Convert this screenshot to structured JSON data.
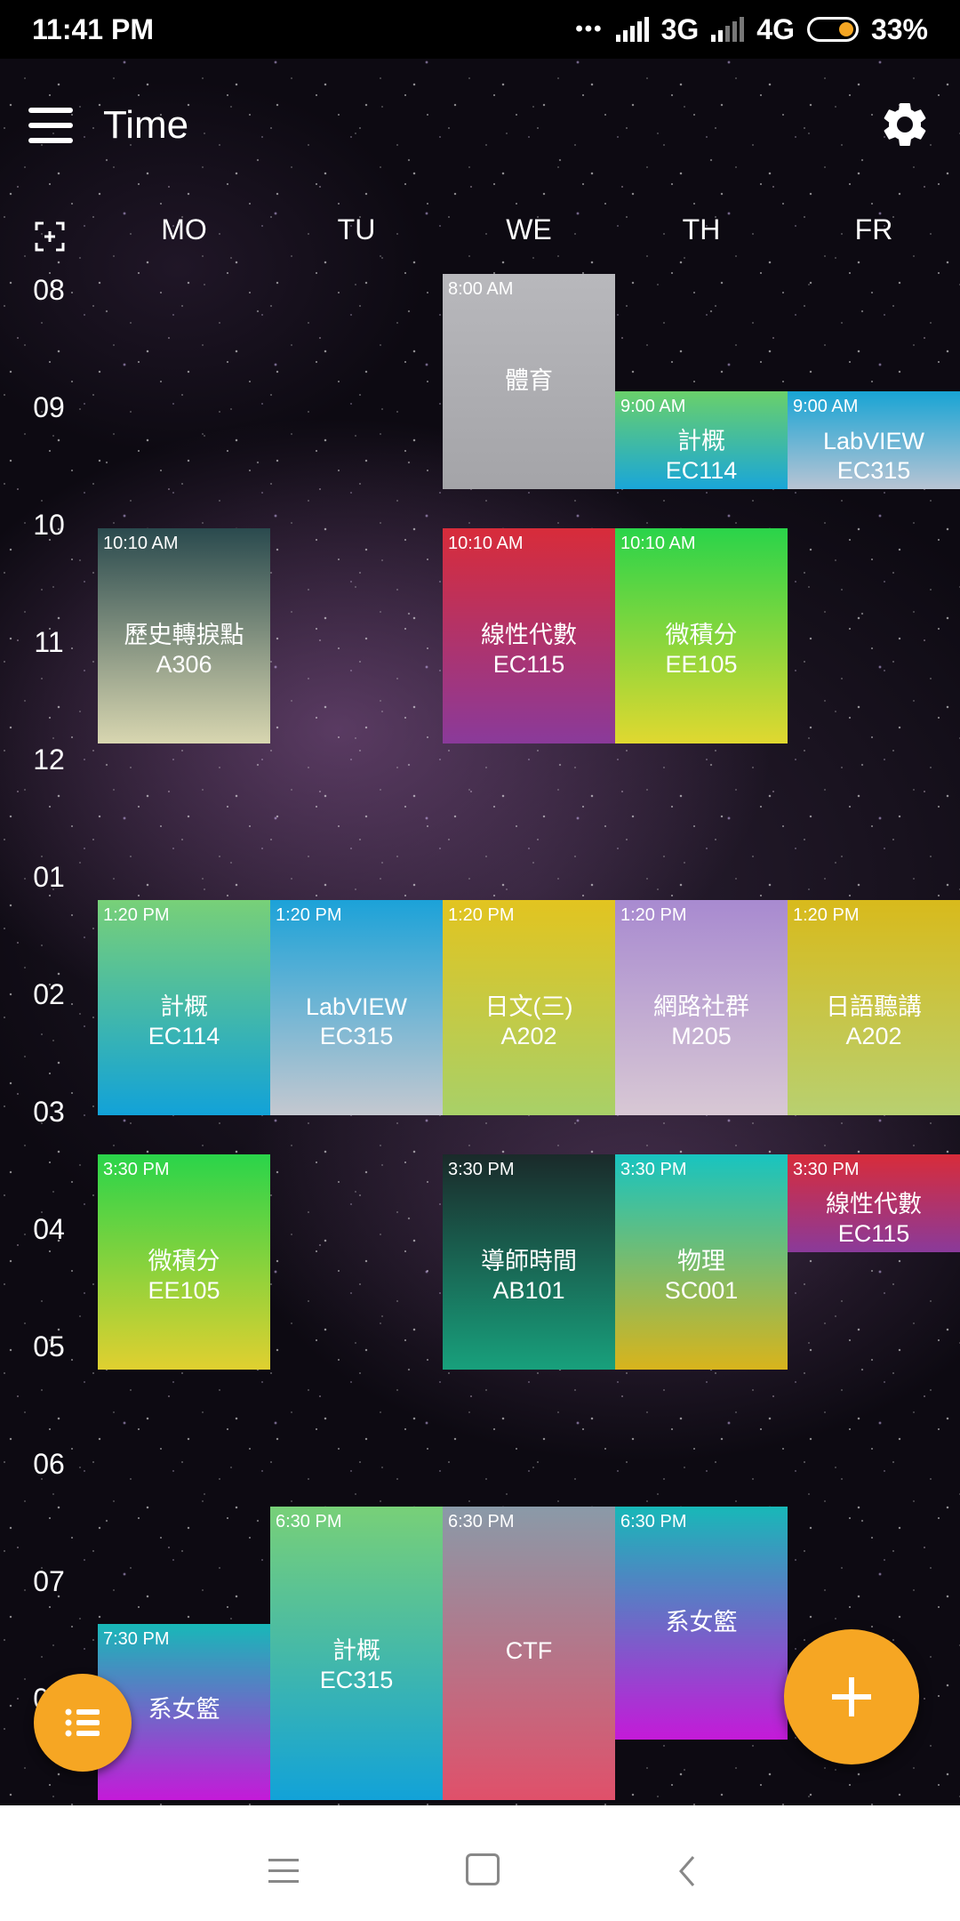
{
  "status_bar": {
    "time": "11:41 PM",
    "net1": "3G",
    "net2": "4G",
    "battery": "33%",
    "dots": "•••"
  },
  "app_bar": {
    "title": "Time"
  },
  "days": [
    "MO",
    "TU",
    "WE",
    "TH",
    "FR"
  ],
  "hours": [
    "08",
    "09",
    "10",
    "11",
    "12",
    "01",
    "02",
    "03",
    "04",
    "05",
    "06",
    "07",
    "08"
  ],
  "courses": {
    "we_0800": {
      "time": "8:00 AM",
      "name": "體育",
      "room": ""
    },
    "th_0900": {
      "time": "9:00 AM",
      "name": "計概",
      "room": "EC114"
    },
    "fr_0900": {
      "time": "9:00 AM",
      "name": "LabVIEW",
      "room": "EC315"
    },
    "mo_1010": {
      "time": "10:10 AM",
      "name": "歷史轉捩點",
      "room": "A306"
    },
    "we_1010": {
      "time": "10:10 AM",
      "name": "線性代數",
      "room": "EC115"
    },
    "th_1010": {
      "time": "10:10 AM",
      "name": "微積分",
      "room": "EE105"
    },
    "mo_1320": {
      "time": "1:20 PM",
      "name": "計概",
      "room": "EC114"
    },
    "tu_1320": {
      "time": "1:20 PM",
      "name": "LabVIEW",
      "room": "EC315"
    },
    "we_1320": {
      "time": "1:20 PM",
      "name": "日文(三)",
      "room": "A202"
    },
    "th_1320": {
      "time": "1:20 PM",
      "name": "網路社群",
      "room": "M205"
    },
    "fr_1320": {
      "time": "1:20 PM",
      "name": "日語聽講",
      "room": "A202"
    },
    "mo_1530": {
      "time": "3:30 PM",
      "name": "微積分",
      "room": "EE105"
    },
    "we_1530": {
      "time": "3:30 PM",
      "name": "導師時間",
      "room": "AB101"
    },
    "th_1530": {
      "time": "3:30 PM",
      "name": "物理",
      "room": "SC001"
    },
    "fr_1530": {
      "time": "3:30 PM",
      "name": "線性代數",
      "room": "EC115"
    },
    "tu_1830": {
      "time": "6:30 PM",
      "name": "計概",
      "room": "EC315"
    },
    "we_1830": {
      "time": "6:30 PM",
      "name": "CTF",
      "room": ""
    },
    "th_1830": {
      "time": "6:30 PM",
      "name": "系女籃",
      "room": ""
    },
    "mo_1930": {
      "time": "7:30 PM",
      "name": "系女籃",
      "room": ""
    }
  },
  "colors": {
    "accent": "#f6a623",
    "status_bar_bg": "#000000",
    "nav_bar_bg": "#ffffff"
  },
  "icons": {
    "menu": "hamburger-icon",
    "settings": "gear-icon",
    "fit": "fit-screen-icon",
    "list": "list-icon",
    "add": "plus-icon"
  }
}
